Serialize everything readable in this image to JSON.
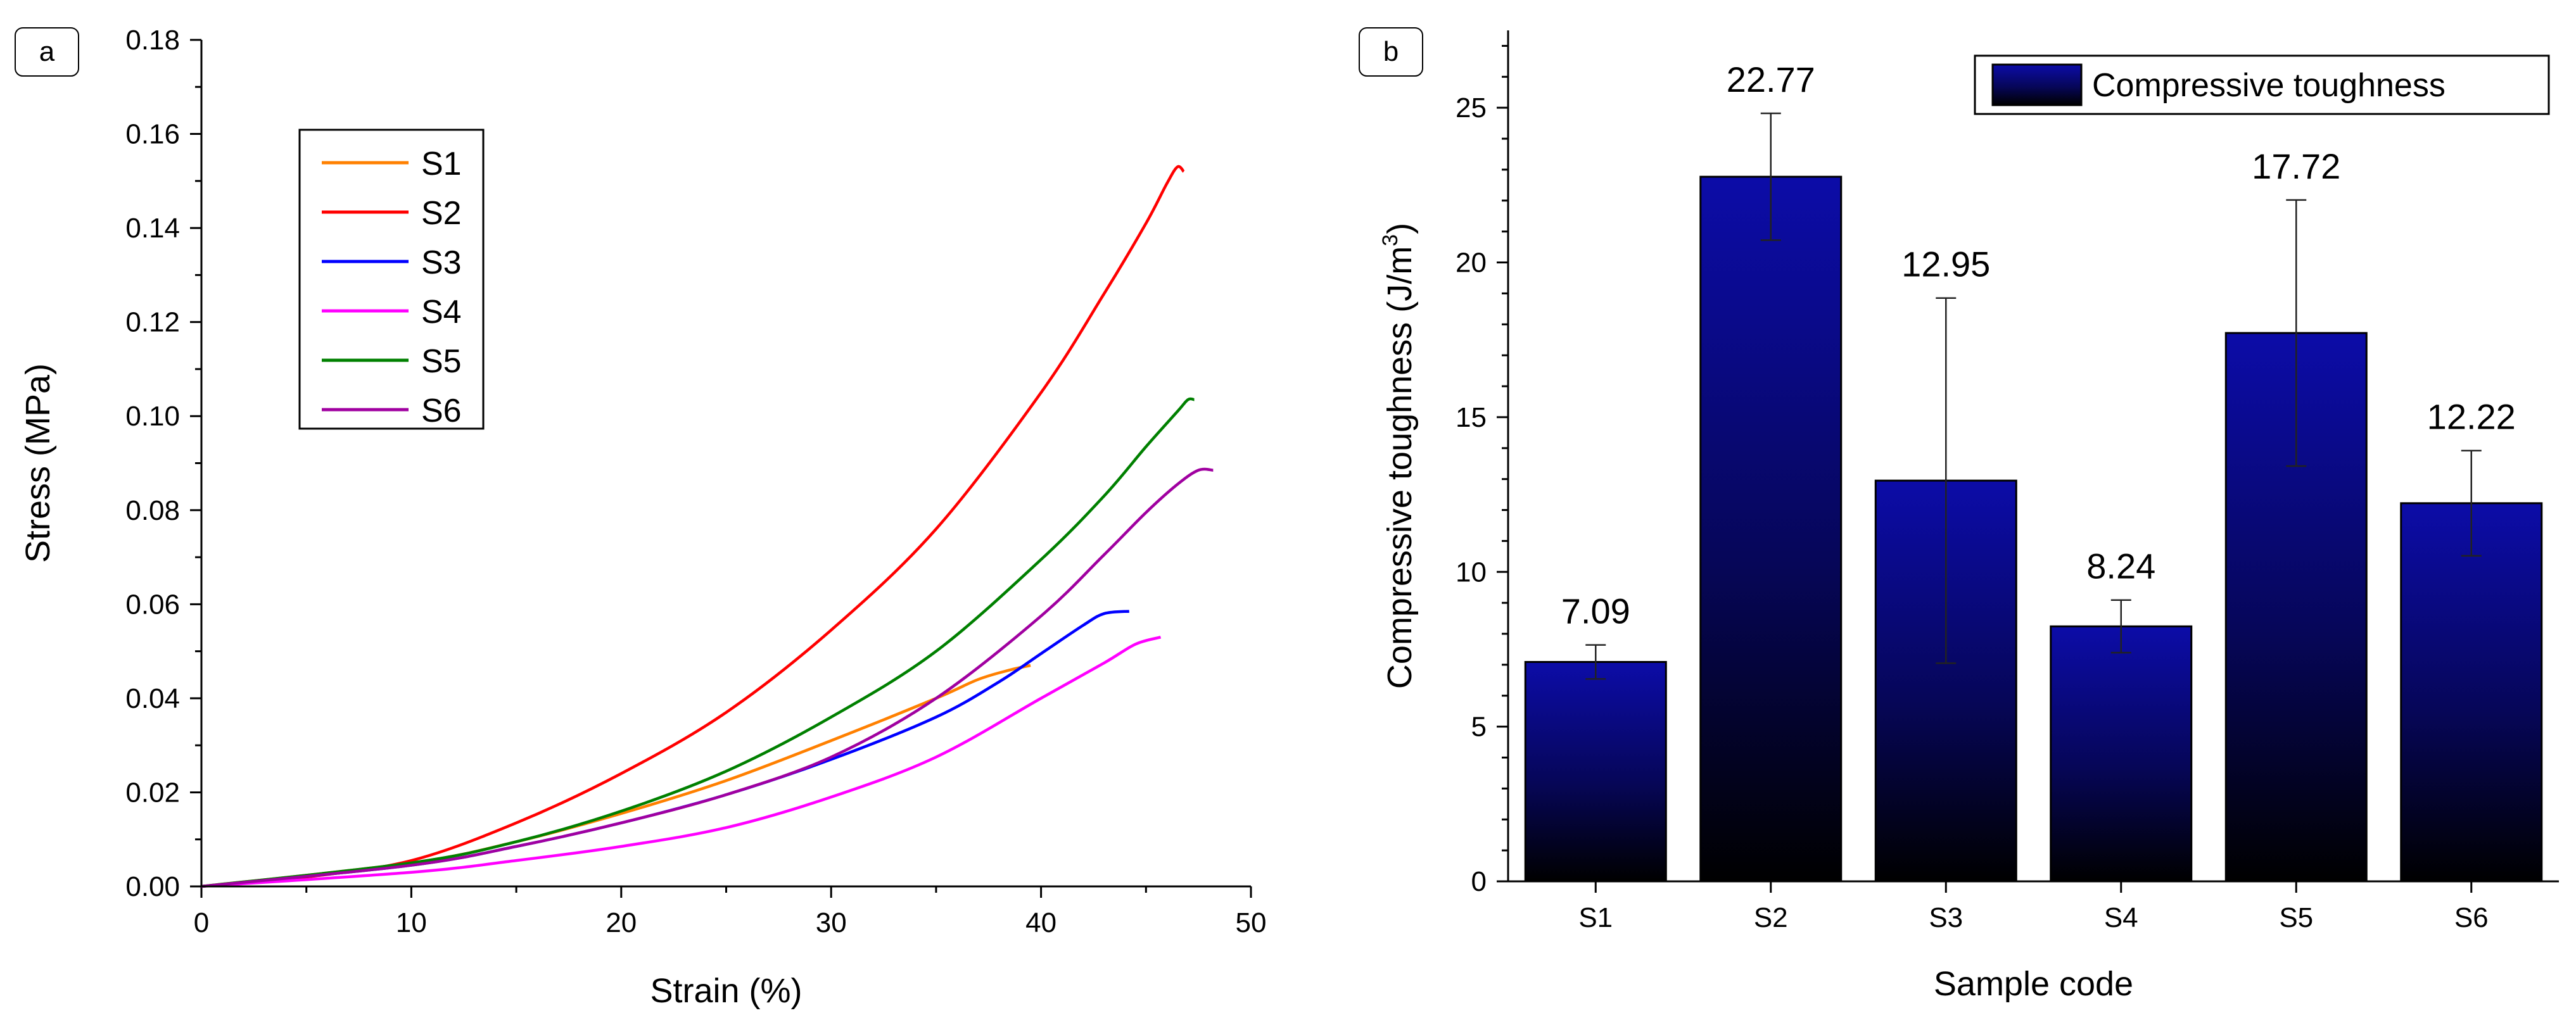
{
  "chart_data": [
    {
      "panel": "a",
      "type": "line",
      "xlabel": "Strain (%)",
      "ylabel": "Stress (MPa)",
      "xlim": [
        0,
        50
      ],
      "ylim": [
        0,
        0.18
      ],
      "xticks": [
        "0",
        "10",
        "20",
        "30",
        "40",
        "50"
      ],
      "yticks": [
        "0.00",
        "0.02",
        "0.04",
        "0.06",
        "0.08",
        "0.10",
        "0.12",
        "0.14",
        "0.16",
        "0.18"
      ],
      "legend_position": "top-left",
      "series": [
        {
          "name": "S1",
          "color": "#ff8000",
          "points": [
            [
              0,
              0
            ],
            [
              10,
              0.005
            ],
            [
              15,
              0.0095
            ],
            [
              20,
              0.0155
            ],
            [
              25,
              0.0225
            ],
            [
              30,
              0.031
            ],
            [
              35,
              0.04
            ],
            [
              37,
              0.044
            ],
            [
              38.5,
              0.046
            ],
            [
              39.5,
              0.047
            ]
          ]
        },
        {
          "name": "S2",
          "color": "#ff0000",
          "points": [
            [
              0,
              0
            ],
            [
              5,
              0.002
            ],
            [
              10,
              0.0055
            ],
            [
              15,
              0.0135
            ],
            [
              20,
              0.024
            ],
            [
              25,
              0.037
            ],
            [
              30,
              0.0545
            ],
            [
              35,
              0.076
            ],
            [
              40,
              0.105
            ],
            [
              43,
              0.126
            ],
            [
              45,
              0.141
            ],
            [
              46,
              0.1495
            ],
            [
              46.5,
              0.153
            ],
            [
              46.8,
              0.152
            ]
          ]
        },
        {
          "name": "S3",
          "color": "#0000ff",
          "points": [
            [
              0,
              0
            ],
            [
              10,
              0.0045
            ],
            [
              15,
              0.0085
            ],
            [
              20,
              0.0135
            ],
            [
              25,
              0.0195
            ],
            [
              30,
              0.027
            ],
            [
              35,
              0.036
            ],
            [
              38,
              0.0435
            ],
            [
              40,
              0.0495
            ],
            [
              42,
              0.0555
            ],
            [
              43,
              0.058
            ],
            [
              44.2,
              0.0585
            ]
          ]
        },
        {
          "name": "S4",
          "color": "#ff00ff",
          "points": [
            [
              0,
              0
            ],
            [
              10,
              0.003
            ],
            [
              15,
              0.0055
            ],
            [
              20,
              0.0085
            ],
            [
              25,
              0.0125
            ],
            [
              30,
              0.019
            ],
            [
              35,
              0.0275
            ],
            [
              40,
              0.04
            ],
            [
              43,
              0.0475
            ],
            [
              44.5,
              0.0515
            ],
            [
              45.7,
              0.053
            ]
          ]
        },
        {
          "name": "S5",
          "color": "#008000",
          "points": [
            [
              0,
              0
            ],
            [
              10,
              0.005
            ],
            [
              15,
              0.0095
            ],
            [
              20,
              0.016
            ],
            [
              25,
              0.0245
            ],
            [
              30,
              0.036
            ],
            [
              35,
              0.05
            ],
            [
              40,
              0.0695
            ],
            [
              43,
              0.083
            ],
            [
              45,
              0.0935
            ],
            [
              46.5,
              0.101
            ],
            [
              47,
              0.1035
            ],
            [
              47.3,
              0.1035
            ]
          ]
        },
        {
          "name": "S6",
          "color": "#a000a0",
          "points": [
            [
              0,
              0
            ],
            [
              10,
              0.0045
            ],
            [
              15,
              0.0085
            ],
            [
              20,
              0.0135
            ],
            [
              25,
              0.0195
            ],
            [
              30,
              0.0275
            ],
            [
              35,
              0.04
            ],
            [
              40,
              0.0575
            ],
            [
              43,
              0.0705
            ],
            [
              45,
              0.0795
            ],
            [
              46.5,
              0.0855
            ],
            [
              47.5,
              0.0885
            ],
            [
              48.2,
              0.0885
            ]
          ]
        }
      ]
    },
    {
      "panel": "b",
      "type": "bar",
      "xlabel": "Sample code",
      "ylabel": "Compressive toughness (J/m3)",
      "ylabel_main": "Compressive toughness (J/m",
      "ylabel_sup": "3",
      "ylabel_close": ")",
      "ylim": [
        0,
        27.5
      ],
      "yticks": [
        "0",
        "5",
        "10",
        "15",
        "20",
        "25"
      ],
      "legend_position": "top-right",
      "series": [
        {
          "name": "Compressive toughness",
          "color": "#0c0ca8",
          "values": [
            7.09,
            22.77,
            12.95,
            8.24,
            17.72,
            12.22
          ]
        }
      ],
      "categories": [
        "S1",
        "S2",
        "S3",
        "S4",
        "S5",
        "S6"
      ],
      "value_labels": [
        "7.09",
        "22.77",
        "12.95",
        "8.24",
        "17.72",
        "12.22"
      ],
      "errors": [
        0.55,
        2.05,
        5.9,
        0.85,
        4.3,
        1.7
      ]
    }
  ]
}
